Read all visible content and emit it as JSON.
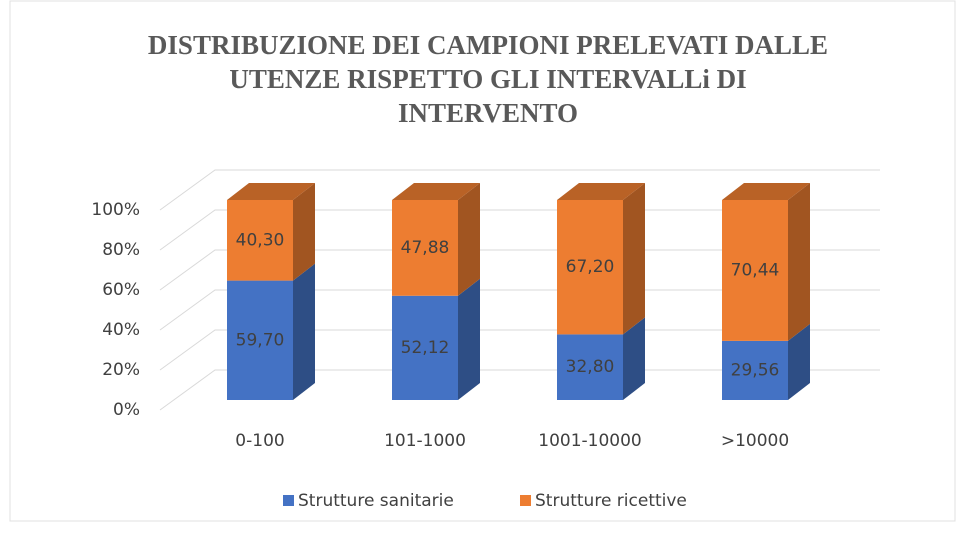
{
  "chart_data": {
    "type": "bar3d_stacked",
    "title": [
      "DISTRIBUZIONE DEI CAMPIONI PRELEVATI DALLE",
      "UTENZE RISPETTO GLI INTERVALLi DI",
      "INTERVENTO"
    ],
    "categories": [
      "0-100",
      "101-1000",
      "1001-10000",
      ">10000"
    ],
    "series": [
      {
        "name": "Strutture sanitarie",
        "color": "#4472c4",
        "values": [
          59.7,
          52.12,
          32.8,
          29.56
        ],
        "value_labels": [
          "59,70",
          "52,12",
          "32,80",
          "29,56"
        ]
      },
      {
        "name": "Strutture ricettive",
        "color": "#ed7d31",
        "values": [
          40.3,
          47.88,
          67.2,
          70.44
        ],
        "value_labels": [
          "40,30",
          "47,88",
          "67,20",
          "70,44"
        ]
      }
    ],
    "ylim": [
      0,
      100
    ],
    "yticks": [
      {
        "value": 0,
        "label": "0%"
      },
      {
        "value": 20,
        "label": "20%"
      },
      {
        "value": 40,
        "label": "40%"
      },
      {
        "value": 60,
        "label": "60%"
      },
      {
        "value": 80,
        "label": "80%"
      },
      {
        "value": 100,
        "label": "100%"
      }
    ],
    "grid": true,
    "legend": "bottom"
  }
}
